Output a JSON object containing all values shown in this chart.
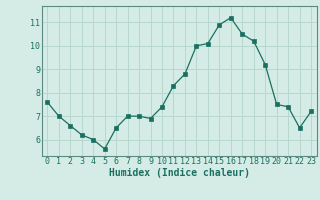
{
  "x": [
    0,
    1,
    2,
    3,
    4,
    5,
    6,
    7,
    8,
    9,
    10,
    11,
    12,
    13,
    14,
    15,
    16,
    17,
    18,
    19,
    20,
    21,
    22,
    23
  ],
  "y": [
    7.6,
    7.0,
    6.6,
    6.2,
    6.0,
    5.6,
    6.5,
    7.0,
    7.0,
    6.9,
    7.4,
    8.3,
    8.8,
    10.0,
    10.1,
    10.9,
    11.2,
    10.5,
    10.2,
    9.2,
    7.5,
    7.4,
    6.5,
    7.2
  ],
  "xlim": [
    -0.5,
    23.5
  ],
  "ylim": [
    5.3,
    11.7
  ],
  "yticks": [
    6,
    7,
    8,
    9,
    10,
    11
  ],
  "xticks": [
    0,
    1,
    2,
    3,
    4,
    5,
    6,
    7,
    8,
    9,
    10,
    11,
    12,
    13,
    14,
    15,
    16,
    17,
    18,
    19,
    20,
    21,
    22,
    23
  ],
  "xlabel": "Humidex (Indice chaleur)",
  "line_color": "#1a7060",
  "marker_color": "#1a7060",
  "bg_color": "#d5ece6",
  "grid_color": "#b8d8cf",
  "xlabel_fontsize": 7,
  "tick_fontsize": 6,
  "spine_color": "#5a8a80"
}
